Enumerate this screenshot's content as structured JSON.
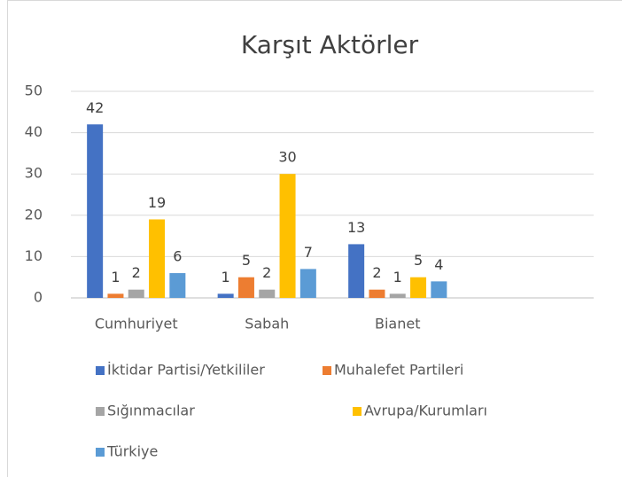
{
  "chart_data": {
    "type": "bar",
    "title": "Karşıt Aktörler",
    "categories": [
      "Cumhuriyet",
      "Sabah",
      "Bianet",
      null
    ],
    "series": [
      {
        "name": "İktidar Partisi/Yetkililer",
        "color": "#4472c4",
        "values": [
          42,
          1,
          13,
          null
        ]
      },
      {
        "name": "Muhalefet Partileri",
        "color": "#ed7d31",
        "values": [
          1,
          5,
          2,
          null
        ]
      },
      {
        "name": "Sığınmacılar",
        "color": "#a5a5a5",
        "values": [
          2,
          2,
          1,
          null
        ]
      },
      {
        "name": "Avrupa/Kurumları",
        "color": "#ffc000",
        "values": [
          19,
          30,
          5,
          null
        ]
      },
      {
        "name": "Türkiye",
        "color": "#5b9bd5",
        "values": [
          6,
          7,
          4,
          null
        ]
      }
    ],
    "ylim": [
      0,
      50
    ],
    "yticks": [
      0,
      10,
      20,
      30,
      40,
      50
    ],
    "grid": true,
    "legend": "bottom"
  }
}
